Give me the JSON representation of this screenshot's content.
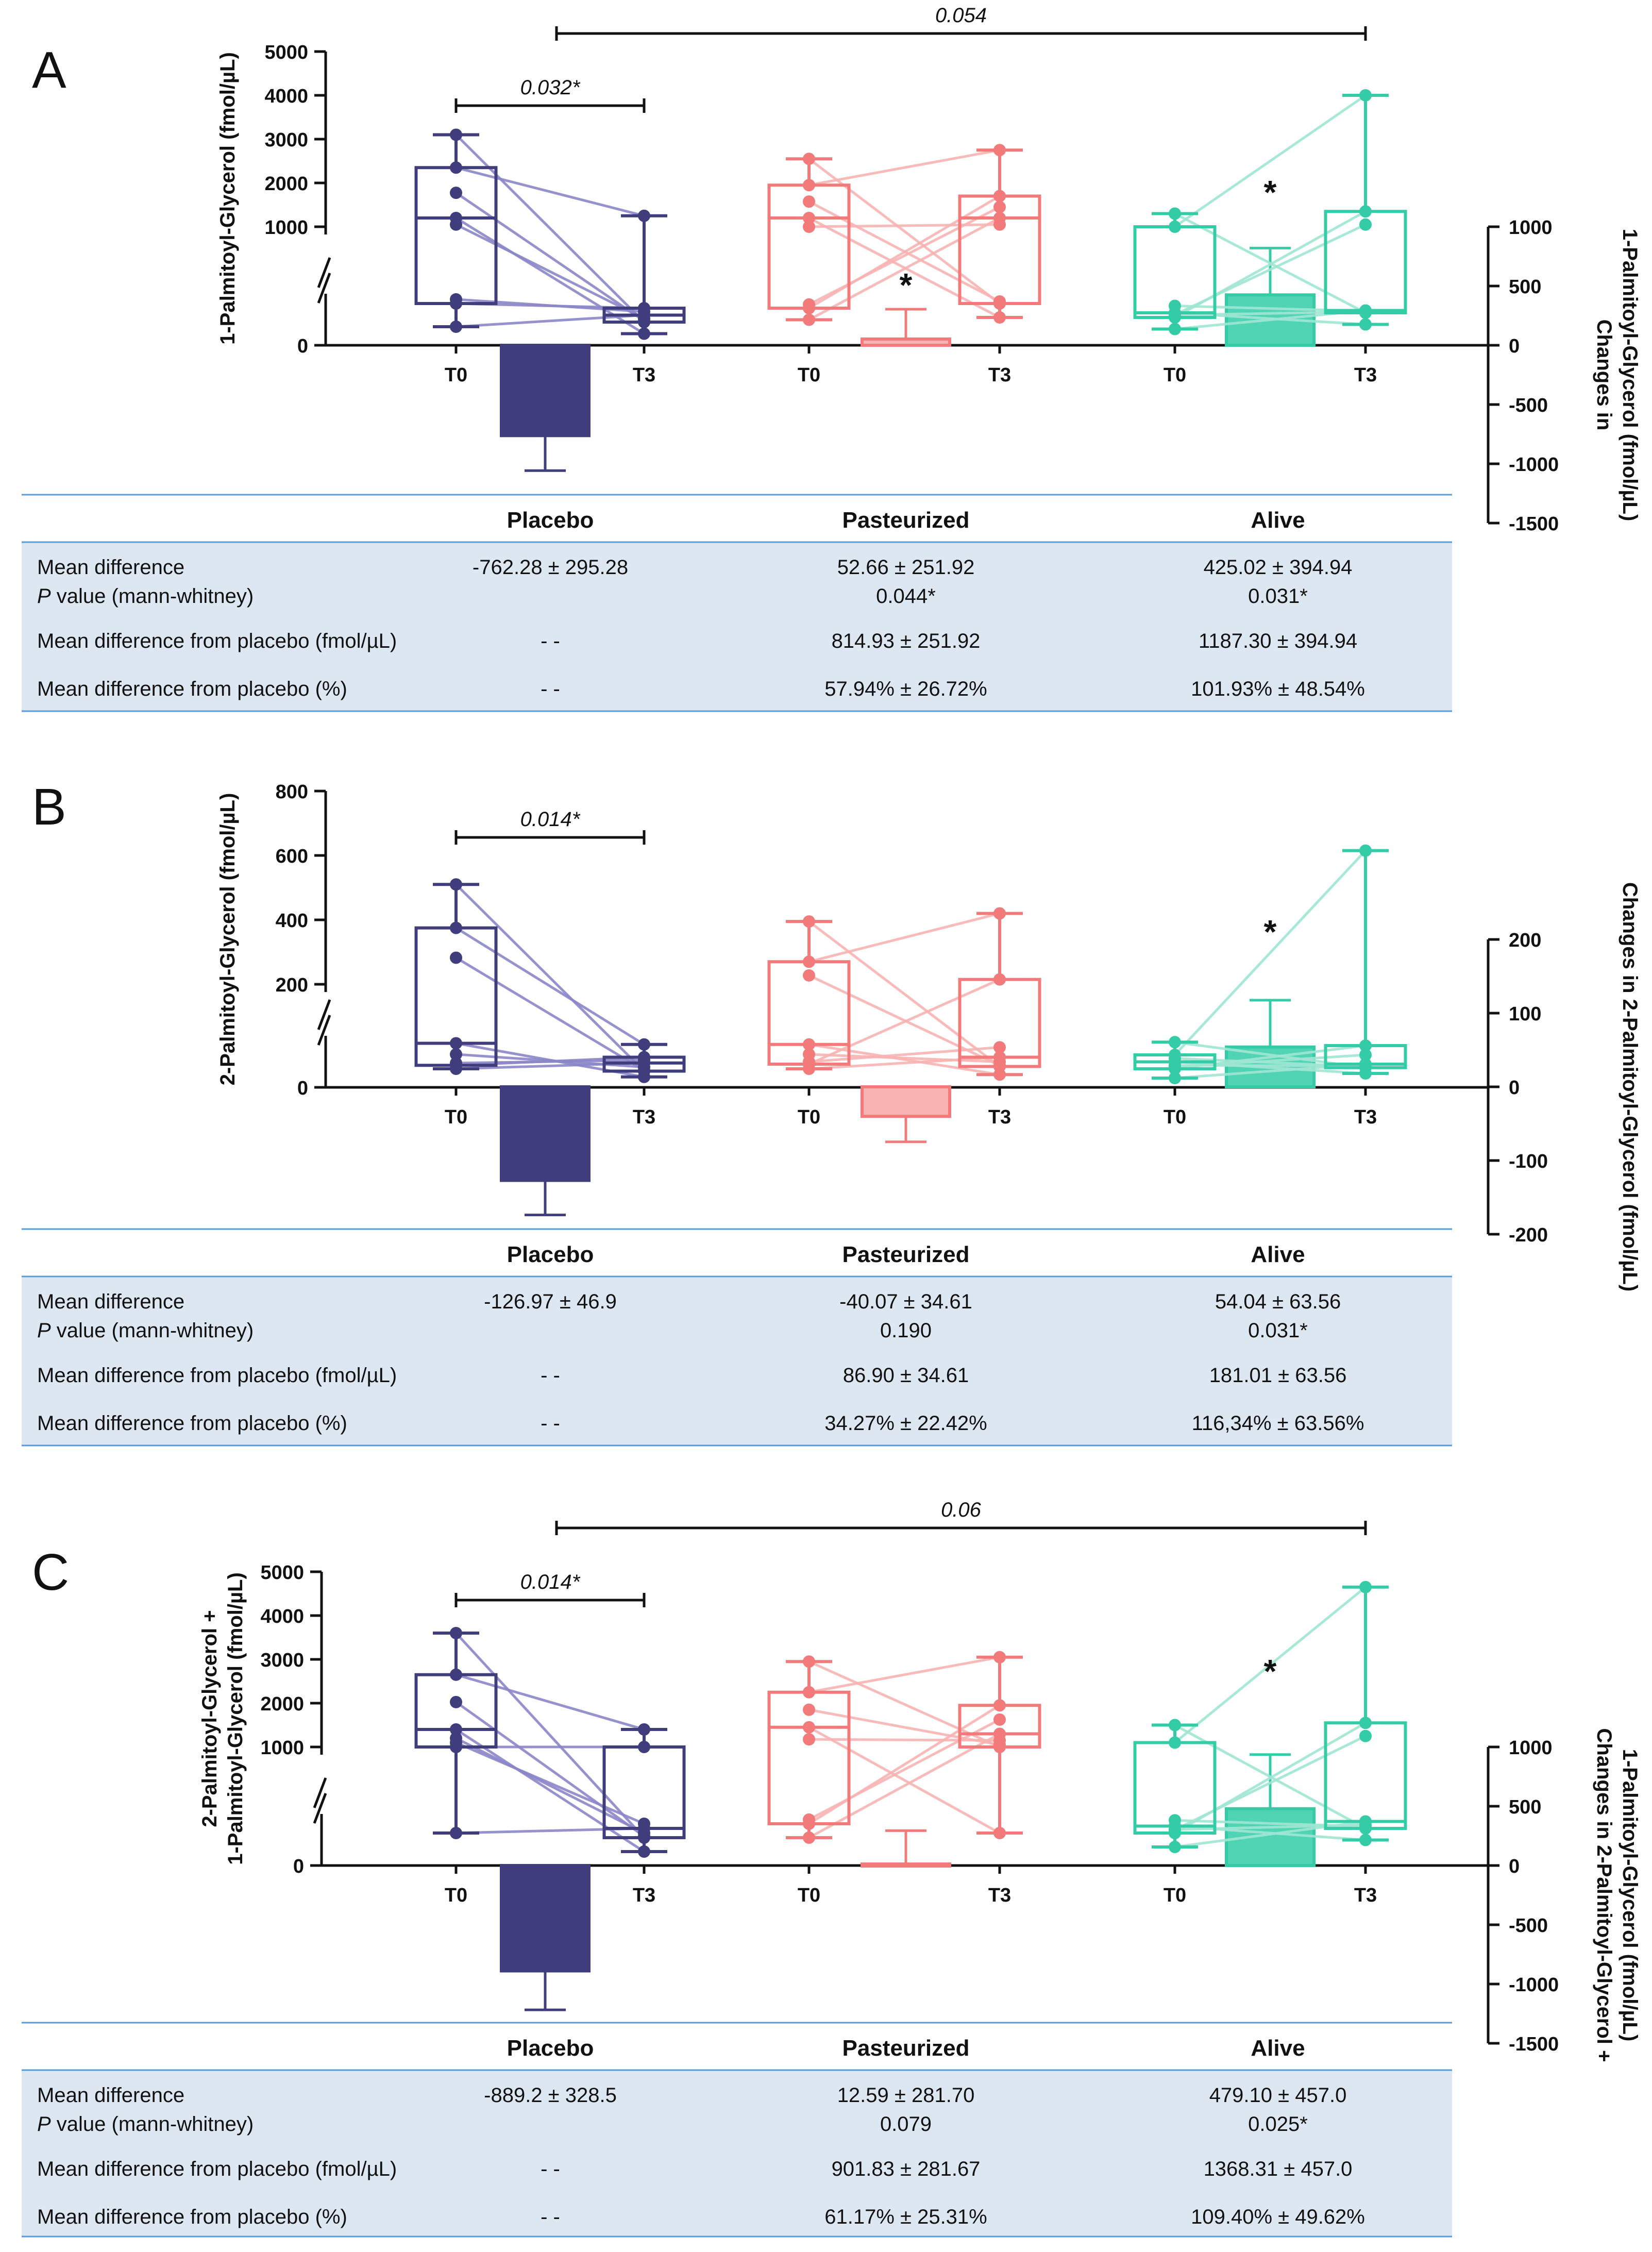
{
  "colors": {
    "placebo": "#3f3d7c",
    "placebo_light": "#8a86c9",
    "pasteurized": "#f27a7a",
    "pasteurized_light": "#f8b3b3",
    "alive": "#33cca6",
    "alive_light": "#9fe6d3",
    "table_bg": "#dde7f2",
    "table_rule": "#5b9bd5"
  },
  "panels": [
    {
      "letter": "A",
      "left_axis_title": [
        "1-Palmitoyl-Glycerol (fmol/µL)"
      ],
      "right_axis_title": [
        "Changes in",
        "1-Palmitoyl-Glycerol (fmol/µL)"
      ],
      "left_ticks": [
        "5000",
        "4000",
        "3000",
        "2000",
        "1000"
      ],
      "left_zero": "0",
      "right_ticks": [
        "1000",
        "500",
        "0",
        "-500",
        "-1000",
        "-1500"
      ],
      "x_labels": [
        "T0",
        "T3",
        "T0",
        "T3",
        "T0",
        "T3"
      ],
      "bracket_small": "0.032*",
      "bracket_large": "0.054",
      "star_mid": "*",
      "star_alive": "*",
      "chart_data": {
        "type": "box_and_bar",
        "left_axis": {
          "range": [
            0,
            5000
          ],
          "ticks": [
            1000,
            2000,
            3000,
            4000,
            5000
          ],
          "broken": true
        },
        "right_axis": {
          "range": [
            -1500,
            1000
          ]
        },
        "groups": [
          "Placebo",
          "Pasteurized",
          "Alive"
        ],
        "timepoints": [
          "T0",
          "T3"
        ],
        "boxes": [
          {
            "group": "Placebo",
            "time": "T0",
            "min": 400,
            "q1": 900,
            "median": 1200,
            "q3": 2350,
            "max": 3100
          },
          {
            "group": "Placebo",
            "time": "T3",
            "min": 250,
            "q1": 500,
            "median": 650,
            "q3": 800,
            "max": 1250
          },
          {
            "group": "Pasteurized",
            "time": "T0",
            "min": 550,
            "q1": 800,
            "median": 1200,
            "q3": 1950,
            "max": 2550
          },
          {
            "group": "Pasteurized",
            "time": "T3",
            "min": 600,
            "q1": 900,
            "median": 1200,
            "q3": 1700,
            "max": 2750
          },
          {
            "group": "Alive",
            "time": "T0",
            "min": 350,
            "q1": 600,
            "median": 700,
            "q3": 1000,
            "max": 1300
          },
          {
            "group": "Alive",
            "time": "T3",
            "min": 450,
            "q1": 700,
            "median": 750,
            "q3": 1350,
            "max": 4000
          }
        ],
        "change_bars": [
          {
            "group": "Placebo",
            "mean": -762.28,
            "sem": 295.28
          },
          {
            "group": "Pasteurized",
            "mean": 52.66,
            "sem": 251.92
          },
          {
            "group": "Alive",
            "mean": 425.02,
            "sem": 394.94
          }
        ],
        "annotations": [
          {
            "from": "Placebo T0",
            "to": "Placebo T3",
            "text": "0.032*"
          },
          {
            "from": "Placebo T0",
            "to": "Alive T3",
            "text": "0.054"
          }
        ]
      },
      "table": {
        "headers": [
          "Placebo",
          "Pasteurized",
          "Alive"
        ],
        "rows": [
          {
            "label": "Mean difference",
            "cells": [
              "-762.28 ± 295.28",
              "52.66 ± 251.92",
              "425.02 ± 394.94"
            ]
          },
          {
            "label_italic": "P",
            "label": " value (mann-whitney)",
            "cells": [
              "",
              "0.044*",
              "0.031*"
            ]
          },
          {
            "label": "Mean difference from placebo (fmol/µL)",
            "cells": [
              "- -",
              "814.93 ± 251.92",
              "1187.30 ± 394.94"
            ]
          },
          {
            "label": "Mean difference from placebo (%)",
            "cells": [
              "- -",
              "57.94% ± 26.72%",
              "101.93% ± 48.54%"
            ]
          }
        ]
      }
    },
    {
      "letter": "B",
      "left_axis_title": [
        "2-Palmitoyl-Glycerol (fmol/µL)"
      ],
      "right_axis_title": [
        "Changes in 2-Palmitoyl-Glycerol (fmol/µL)"
      ],
      "left_ticks": [
        "800",
        "600",
        "400",
        "200"
      ],
      "left_zero": "0",
      "right_ticks": [
        "200",
        "100",
        "0",
        "-100",
        "-200"
      ],
      "x_labels": [
        "T0",
        "T3",
        "T0",
        "T3",
        "T0",
        "T3"
      ],
      "bracket_small": "0.014*",
      "star_alive": "*",
      "chart_data": {
        "type": "box_and_bar",
        "left_axis": {
          "range": [
            0,
            800
          ],
          "ticks": [
            200,
            400,
            600,
            800
          ],
          "broken": true
        },
        "right_axis": {
          "range": [
            -200,
            200
          ]
        },
        "groups": [
          "Placebo",
          "Pasteurized",
          "Alive"
        ],
        "timepoints": [
          "T0",
          "T3"
        ],
        "boxes": [
          {
            "group": "Placebo",
            "time": "T0",
            "min": 80,
            "q1": 95,
            "median": 190,
            "q3": 375,
            "max": 510
          },
          {
            "group": "Placebo",
            "time": "T3",
            "min": 45,
            "q1": 70,
            "median": 105,
            "q3": 130,
            "max": 185
          },
          {
            "group": "Pasteurized",
            "time": "T0",
            "min": 80,
            "q1": 100,
            "median": 185,
            "q3": 270,
            "max": 395
          },
          {
            "group": "Pasteurized",
            "time": "T3",
            "min": 55,
            "q1": 90,
            "median": 130,
            "q3": 215,
            "max": 420
          },
          {
            "group": "Alive",
            "time": "T0",
            "min": 40,
            "q1": 80,
            "median": 110,
            "q3": 140,
            "max": 195
          },
          {
            "group": "Alive",
            "time": "T3",
            "min": 60,
            "q1": 85,
            "median": 100,
            "q3": 180,
            "max": 615
          }
        ],
        "change_bars": [
          {
            "group": "Placebo",
            "mean": -126.97,
            "sem": 46.9
          },
          {
            "group": "Pasteurized",
            "mean": -40.07,
            "sem": 34.61
          },
          {
            "group": "Alive",
            "mean": 54.04,
            "sem": 63.56
          }
        ],
        "annotations": [
          {
            "from": "Placebo T0",
            "to": "Placebo T3",
            "text": "0.014*"
          }
        ]
      },
      "table": {
        "headers": [
          "Placebo",
          "Pasteurized",
          "Alive"
        ],
        "rows": [
          {
            "label": "Mean difference",
            "cells": [
              "-126.97 ± 46.9",
              "-40.07 ± 34.61",
              "54.04 ± 63.56"
            ]
          },
          {
            "label_italic": "P",
            "label": " value (mann-whitney)",
            "cells": [
              "",
              "0.190",
              "0.031*"
            ]
          },
          {
            "label": "Mean difference from placebo (fmol/µL)",
            "cells": [
              "- -",
              "86.90 ± 34.61",
              "181.01 ± 63.56"
            ]
          },
          {
            "label": "Mean difference from placebo (%)",
            "cells": [
              "- -",
              "34.27% ± 22.42%",
              "116,34% ± 63.56%"
            ]
          }
        ]
      }
    },
    {
      "letter": "C",
      "left_axis_title": [
        "2-Palmitoyl-Glycerol +",
        "1-Palmitoyl-Glycerol (fmol/µL)"
      ],
      "right_axis_title": [
        "Changes in 2-Palmitoyl-Glycerol +",
        "1-Palmitoyl-Glycerol (fmol/µL)"
      ],
      "left_ticks": [
        "5000",
        "4000",
        "3000",
        "2000",
        "1000"
      ],
      "left_zero": "0",
      "right_ticks": [
        "1000",
        "500",
        "0",
        "-500",
        "-1000",
        "-1500"
      ],
      "x_labels": [
        "T0",
        "T3",
        "T0",
        "T3",
        "T0",
        "T3"
      ],
      "bracket_small": "0.014*",
      "bracket_large": "0.06",
      "star_alive": "*",
      "chart_data": {
        "type": "box_and_bar",
        "left_axis": {
          "range": [
            0,
            5000
          ],
          "ticks": [
            1000,
            2000,
            3000,
            4000,
            5000
          ],
          "broken": true
        },
        "right_axis": {
          "range": [
            -1500,
            1000
          ]
        },
        "groups": [
          "Placebo",
          "Pasteurized",
          "Alive"
        ],
        "timepoints": [
          "T0",
          "T3"
        ],
        "boxes": [
          {
            "group": "Placebo",
            "time": "T0",
            "min": 700,
            "q1": 1000,
            "median": 1400,
            "q3": 2650,
            "max": 3600
          },
          {
            "group": "Placebo",
            "time": "T3",
            "min": 300,
            "q1": 600,
            "median": 800,
            "q3": 1000,
            "max": 1400
          },
          {
            "group": "Pasteurized",
            "time": "T0",
            "min": 600,
            "q1": 900,
            "median": 1450,
            "q3": 2250,
            "max": 2950
          },
          {
            "group": "Pasteurized",
            "time": "T3",
            "min": 700,
            "q1": 1000,
            "median": 1300,
            "q3": 1950,
            "max": 3050
          },
          {
            "group": "Alive",
            "time": "T0",
            "min": 400,
            "q1": 700,
            "median": 850,
            "q3": 1100,
            "max": 1500
          },
          {
            "group": "Alive",
            "time": "T3",
            "min": 550,
            "q1": 800,
            "median": 950,
            "q3": 1550,
            "max": 4650
          }
        ],
        "change_bars": [
          {
            "group": "Placebo",
            "mean": -889.2,
            "sem": 328.5
          },
          {
            "group": "Pasteurized",
            "mean": 12.59,
            "sem": 281.7
          },
          {
            "group": "Alive",
            "mean": 479.1,
            "sem": 457.0
          }
        ],
        "annotations": [
          {
            "from": "Placebo T0",
            "to": "Placebo T3",
            "text": "0.014*"
          },
          {
            "from": "Placebo T0",
            "to": "Alive T3",
            "text": "0.06"
          }
        ]
      },
      "table": {
        "headers": [
          "Placebo",
          "Pasteurized",
          "Alive"
        ],
        "rows": [
          {
            "label": "Mean difference",
            "cells": [
              "-889.2 ± 328.5",
              "12.59 ± 281.70",
              "479.10 ± 457.0"
            ]
          },
          {
            "label_italic": "P",
            "label": " value (mann-whitney)",
            "cells": [
              "",
              "0.079",
              "0.025*"
            ]
          },
          {
            "label": "Mean difference from placebo (fmol/µL)",
            "cells": [
              "- -",
              "901.83 ± 281.67",
              "1368.31 ± 457.0"
            ]
          },
          {
            "label": "Mean difference from placebo (%)",
            "cells": [
              "- -",
              "61.17% ± 25.31%",
              "109.40% ± 49.62%"
            ]
          }
        ]
      }
    }
  ]
}
